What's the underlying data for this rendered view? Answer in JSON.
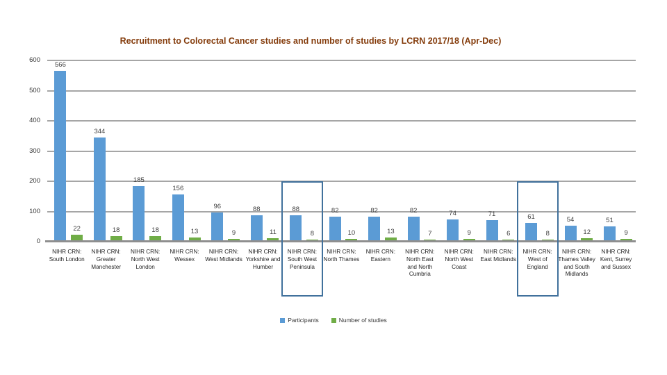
{
  "title": "Recruitment to Colorectal Cancer studies and number of studies by LCRN 2017/18 (Apr-Dec)",
  "colors": {
    "participants": "#5B9BD5",
    "studies": "#70AD47",
    "gridline": "#a6a6a6",
    "title_text": "#843C0C",
    "value_label_text": "#404040",
    "highlight_border": "#41719C"
  },
  "legend": [
    {
      "label": "Participants",
      "color": "#5B9BD5"
    },
    {
      "label": "Number of studies",
      "color": "#70AD47"
    }
  ],
  "chart_data": {
    "type": "bar",
    "title": "Recruitment to Colorectal Cancer studies and number of studies by LCRN 2017/18 (Apr-Dec)",
    "categories": [
      "NIHR CRN: South London",
      "NIHR CRN: Greater Manchester",
      "NIHR CRN: North West London",
      "NIHR CRN: Wessex",
      "NIHR CRN: West Midlands",
      "NIHR CRN: Yorkshire and Humber",
      "NIHR CRN: South West Peninsula",
      "NIHR CRN: North Thames",
      "NIHR CRN: Eastern",
      "NIHR CRN: North East and North Cumbria",
      "NIHR CRN: North West Coast",
      "NIHR CRN: East Midlands",
      "NIHR CRN: West of England",
      "NIHR CRN: Thames Valley and South Midlands",
      "NIHR CRN: Kent, Surrey and Sussex"
    ],
    "series": [
      {
        "name": "Participants",
        "color": "#5B9BD5",
        "values": [
          566,
          344,
          185,
          156,
          96,
          88,
          88,
          82,
          82,
          82,
          74,
          71,
          61,
          54,
          51
        ]
      },
      {
        "name": "Number of studies",
        "color": "#70AD47",
        "values": [
          22,
          18,
          18,
          13,
          9,
          11,
          8,
          10,
          13,
          7,
          9,
          6,
          8,
          12,
          9
        ]
      }
    ],
    "xlabel": "",
    "ylabel": "",
    "ylim": [
      0,
      600
    ],
    "y_ticks": [
      0,
      100,
      200,
      300,
      400,
      500,
      600
    ],
    "grid": true,
    "legend_position": "bottom",
    "data_labels": true,
    "highlighted_indices": [
      6,
      12
    ],
    "highlighted_categories": [
      "NIHR CRN: South West Peninsula",
      "NIHR CRN: West of England"
    ]
  }
}
